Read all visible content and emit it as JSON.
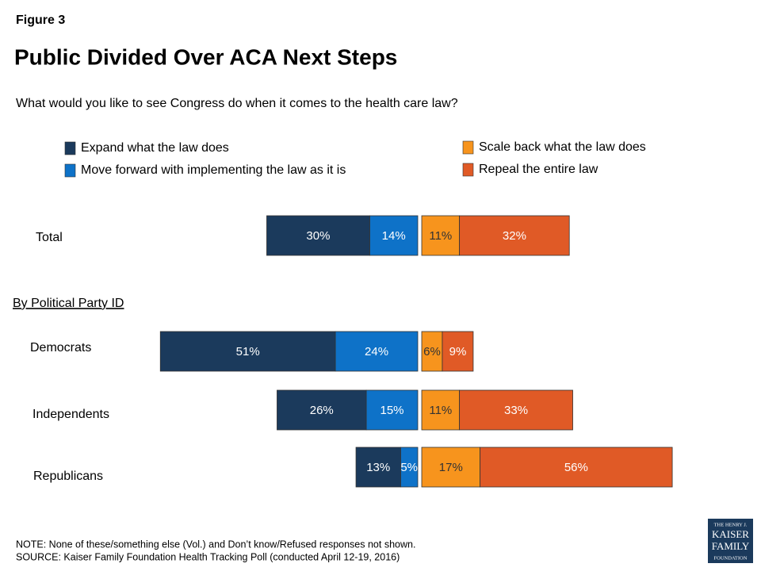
{
  "chart_data": {
    "type": "bar",
    "figure_label": "Figure 3",
    "title": "Public Divided Over ACA Next Steps",
    "subtitle": "What would you like to see Congress do when it comes to the health care law?",
    "group_label": "By Political Party ID",
    "categories": [
      "Total",
      "Democrats",
      "Independents",
      "Republicans"
    ],
    "series": [
      {
        "name": "Expand what the law does",
        "color": "#1b3a5c",
        "values": [
          30,
          51,
          26,
          13
        ],
        "value_labels": [
          "30%",
          "51%",
          "26%",
          "13%"
        ]
      },
      {
        "name": "Move forward with implementing the law as it is",
        "color": "#0e72c8",
        "values": [
          14,
          24,
          15,
          5
        ],
        "value_labels": [
          "14%",
          "24%",
          "15%",
          "5%"
        ]
      },
      {
        "name": "Scale back what the law does",
        "color": "#f7941d",
        "values": [
          11,
          6,
          11,
          17
        ],
        "value_labels": [
          "11%",
          "6%",
          "11%",
          "17%"
        ]
      },
      {
        "name": "Repeal the entire law",
        "color": "#e05a26",
        "values": [
          32,
          9,
          33,
          56
        ],
        "value_labels": [
          "32%",
          "9%",
          "33%",
          "56%"
        ]
      }
    ],
    "note": "NOTE: None of these/something else (Vol.) and Don’t know/Refused responses not shown.",
    "source": "SOURCE: Kaiser Family Foundation Health Tracking Poll (conducted April 12-19, 2016)",
    "logo": [
      "THE HENRY J.",
      "KAISER",
      "FAMILY",
      "FOUNDATION"
    ]
  }
}
